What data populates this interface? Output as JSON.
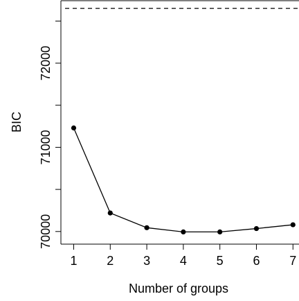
{
  "chart_data": {
    "type": "line",
    "xlabel": "Number of groups",
    "ylabel": "BIC",
    "x": [
      1,
      2,
      3,
      4,
      5,
      6,
      7
    ],
    "xticks": [
      "1",
      "2",
      "3",
      "4",
      "5",
      "6",
      "7"
    ],
    "xlim": [
      0.65,
      7.05
    ],
    "ylim": [
      69850,
      72750
    ],
    "yticks": [
      70000,
      71000,
      72000
    ],
    "ytick_labels": [
      "70000",
      "71000",
      "72000"
    ],
    "series": [
      {
        "values": [
          71230,
          70220,
          70045,
          69995,
          69995,
          70035,
          70080
        ]
      }
    ],
    "reference_line": {
      "style": "dashed",
      "y": 72650
    },
    "grid": false,
    "legend": "none"
  }
}
